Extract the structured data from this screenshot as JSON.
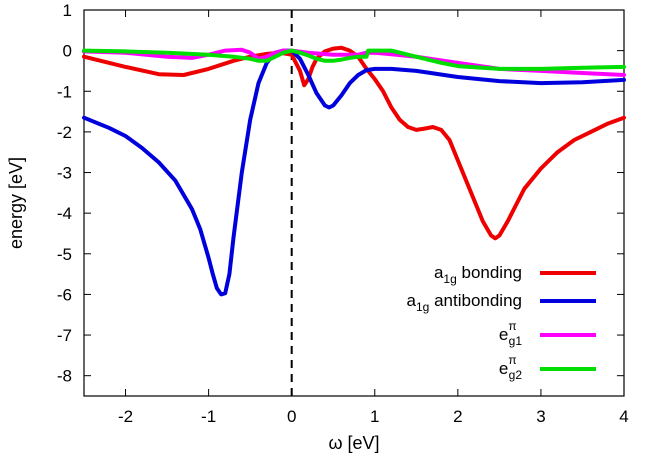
{
  "chart_data": {
    "type": "line",
    "xlabel": "ω [eV]",
    "ylabel": "energy [eV]",
    "xlim": [
      -2.5,
      4
    ],
    "ylim": [
      -8.5,
      1
    ],
    "xticks": [
      -2,
      -1,
      0,
      1,
      2,
      3,
      4
    ],
    "yticks": [
      1,
      0,
      -1,
      -2,
      -3,
      -4,
      -5,
      -6,
      -7,
      -8
    ],
    "xtick_labels": [
      "-2",
      "-1",
      "0",
      "1",
      "2",
      "3",
      "4"
    ],
    "ytick_labels": [
      "1",
      "0",
      "-1",
      "-2",
      "-3",
      "-4",
      "-5",
      "-6",
      "-7",
      "-8"
    ],
    "reference_line": {
      "x": 0,
      "style": "dashed",
      "color": "#000000"
    },
    "grid": false,
    "legend_position": "bottom-right",
    "series": [
      {
        "name": "a1g bonding",
        "label_main": "a",
        "label_sub": "1g",
        "label_rest": " bonding",
        "color": "#ee0000",
        "x": [
          -2.5,
          -2.0,
          -1.6,
          -1.3,
          -1.0,
          -0.7,
          -0.5,
          -0.3,
          -0.15,
          0.0,
          0.1,
          0.15,
          0.2,
          0.25,
          0.3,
          0.4,
          0.5,
          0.6,
          0.7,
          0.8,
          0.9,
          1.0,
          1.1,
          1.2,
          1.3,
          1.4,
          1.5,
          1.6,
          1.7,
          1.8,
          1.9,
          2.0,
          2.1,
          2.2,
          2.3,
          2.4,
          2.45,
          2.5,
          2.6,
          2.7,
          2.8,
          3.0,
          3.2,
          3.4,
          3.6,
          3.8,
          4.0
        ],
        "y": [
          -0.15,
          -0.4,
          -0.58,
          -0.6,
          -0.45,
          -0.25,
          -0.15,
          -0.08,
          -0.05,
          -0.1,
          -0.5,
          -0.85,
          -0.7,
          -0.4,
          -0.2,
          -0.02,
          0.05,
          0.07,
          0.0,
          -0.15,
          -0.45,
          -0.7,
          -1.0,
          -1.4,
          -1.7,
          -1.88,
          -1.95,
          -1.92,
          -1.88,
          -1.95,
          -2.2,
          -2.7,
          -3.2,
          -3.7,
          -4.2,
          -4.55,
          -4.62,
          -4.55,
          -4.2,
          -3.8,
          -3.4,
          -2.9,
          -2.5,
          -2.2,
          -2.0,
          -1.8,
          -1.65
        ]
      },
      {
        "name": "a1g antibonding",
        "label_main": "a",
        "label_sub": "1g",
        "label_rest": " antibonding",
        "color": "#0000dd",
        "x": [
          -2.5,
          -2.2,
          -2.0,
          -1.8,
          -1.6,
          -1.4,
          -1.2,
          -1.1,
          -1.0,
          -0.95,
          -0.9,
          -0.85,
          -0.8,
          -0.75,
          -0.7,
          -0.6,
          -0.5,
          -0.4,
          -0.3,
          -0.2,
          -0.1,
          0.0,
          0.1,
          0.2,
          0.3,
          0.4,
          0.45,
          0.5,
          0.6,
          0.7,
          0.8,
          0.9,
          1.0,
          1.2,
          1.5,
          2.0,
          2.5,
          3.0,
          3.5,
          4.0
        ],
        "y": [
          -1.65,
          -1.9,
          -2.1,
          -2.4,
          -2.75,
          -3.2,
          -3.9,
          -4.4,
          -5.1,
          -5.5,
          -5.85,
          -6.0,
          -5.97,
          -5.5,
          -4.6,
          -3.0,
          -1.7,
          -0.8,
          -0.3,
          -0.05,
          0.0,
          0.0,
          -0.2,
          -0.6,
          -1.05,
          -1.35,
          -1.4,
          -1.35,
          -1.1,
          -0.8,
          -0.6,
          -0.48,
          -0.45,
          -0.45,
          -0.5,
          -0.65,
          -0.75,
          -0.8,
          -0.78,
          -0.72
        ]
      },
      {
        "name": "eg1π",
        "label_main": "e",
        "label_sub": "g1",
        "label_sup": "π",
        "label_rest": "",
        "color": "#ff00ff",
        "x": [
          -2.5,
          -2.0,
          -1.5,
          -1.2,
          -1.0,
          -0.8,
          -0.6,
          -0.5,
          -0.4,
          -0.3,
          -0.2,
          -0.1,
          0.0,
          0.2,
          0.5,
          0.8,
          0.9,
          1.0,
          1.5,
          2.0,
          2.5,
          3.0,
          3.5,
          4.0
        ],
        "y": [
          -0.02,
          -0.05,
          -0.15,
          -0.18,
          -0.1,
          0.0,
          0.02,
          -0.05,
          -0.2,
          -0.15,
          -0.05,
          0.0,
          0.0,
          -0.05,
          -0.1,
          -0.1,
          -0.05,
          -0.05,
          -0.15,
          -0.3,
          -0.45,
          -0.5,
          -0.55,
          -0.6
        ]
      },
      {
        "name": "eg2π",
        "label_main": "e",
        "label_sub": "g2",
        "label_sup": "π",
        "label_rest": "",
        "color": "#00dd00",
        "x": [
          -2.5,
          -2.0,
          -1.5,
          -1.0,
          -0.7,
          -0.5,
          -0.4,
          -0.3,
          -0.2,
          -0.1,
          0.0,
          0.1,
          0.2,
          0.3,
          0.4,
          0.5,
          0.6,
          0.7,
          0.8,
          0.9,
          0.92,
          1.0,
          1.2,
          1.4,
          1.6,
          1.8,
          2.0,
          2.5,
          3.0,
          3.5,
          4.0
        ],
        "y": [
          0.0,
          -0.02,
          -0.05,
          -0.1,
          -0.15,
          -0.2,
          -0.25,
          -0.25,
          -0.15,
          -0.05,
          0.0,
          -0.05,
          -0.12,
          -0.2,
          -0.25,
          -0.25,
          -0.22,
          -0.18,
          -0.15,
          -0.15,
          0.0,
          0.0,
          0.0,
          -0.1,
          -0.2,
          -0.3,
          -0.38,
          -0.45,
          -0.45,
          -0.42,
          -0.4
        ]
      }
    ]
  }
}
